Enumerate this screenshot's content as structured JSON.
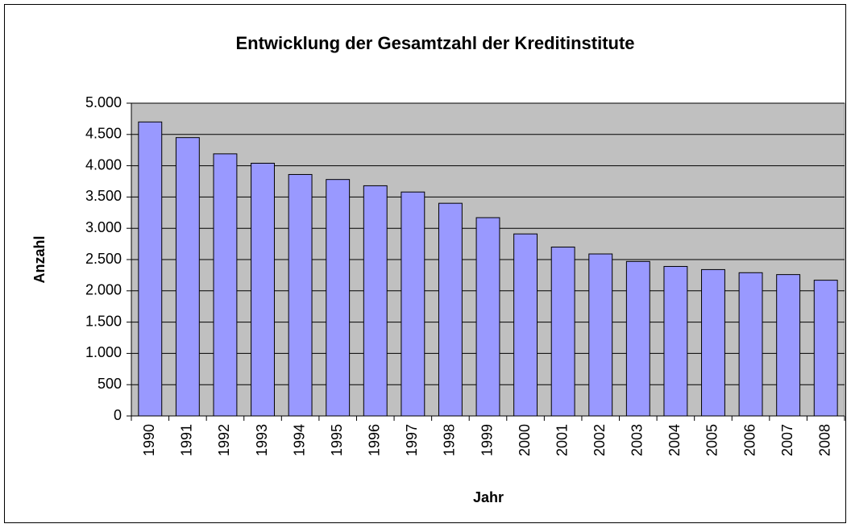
{
  "chart_data": {
    "type": "bar",
    "title": "Entwicklung der Gesamtzahl der Kreditinstitute",
    "x_label": "Jahr",
    "y_label": "Anzahl",
    "categories": [
      "1990",
      "1991",
      "1992",
      "1993",
      "1994",
      "1995",
      "1996",
      "1997",
      "1998",
      "1999",
      "2000",
      "2001",
      "2002",
      "2003",
      "2004",
      "2005",
      "2006",
      "2007",
      "2008"
    ],
    "values": [
      4700,
      4450,
      4190,
      4040,
      3860,
      3780,
      3680,
      3580,
      3400,
      3170,
      2910,
      2700,
      2590,
      2470,
      2390,
      2340,
      2290,
      2260,
      2170
    ],
    "color": "#9999ff",
    "ylim": [
      0,
      5000
    ],
    "yticks": [
      0,
      500,
      {
        "value": 1000,
        "label": "1.000"
      },
      {
        "value": 1500,
        "label": "1.500"
      },
      {
        "value": 2000,
        "label": "2.000"
      },
      {
        "value": 2500,
        "label": "2.500"
      },
      {
        "value": 3000,
        "label": "3.000"
      },
      {
        "value": 3500,
        "label": "3.500"
      },
      {
        "value": 4000,
        "label": "4.000"
      },
      {
        "value": 4500,
        "label": "4.500"
      },
      {
        "value": 5000,
        "label": "5.000"
      }
    ],
    "grid": true
  }
}
